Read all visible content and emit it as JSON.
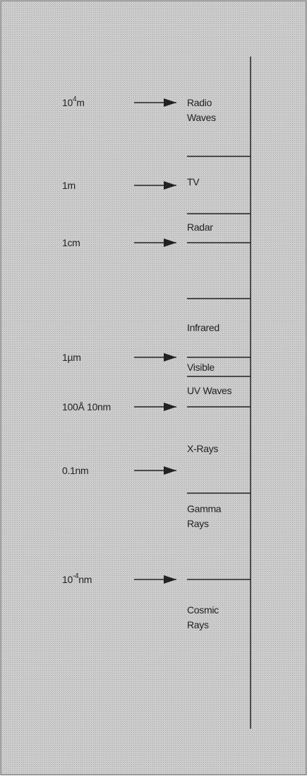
{
  "markers": [
    {
      "text": "10",
      "sup": "4",
      "after": "m"
    },
    {
      "text": "1m"
    },
    {
      "text": "1cm"
    },
    {
      "text": "1µm"
    },
    {
      "text": "100Å 10nm"
    },
    {
      "text": "0.1nm"
    },
    {
      "text": "10",
      "sup": "-4",
      "after": "nm"
    }
  ],
  "bands": [
    {
      "lines": [
        "Radio",
        "Waves"
      ]
    },
    {
      "lines": [
        "TV"
      ]
    },
    {
      "lines": [
        "Radar"
      ]
    },
    {
      "lines": [
        "Infrared"
      ]
    },
    {
      "lines": [
        "Visible"
      ]
    },
    {
      "lines": [
        "UV Waves"
      ]
    },
    {
      "lines": [
        "X-Rays"
      ]
    },
    {
      "lines": [
        "Gamma",
        "Rays"
      ]
    },
    {
      "lines": [
        "Cosmic",
        "Rays"
      ]
    }
  ]
}
